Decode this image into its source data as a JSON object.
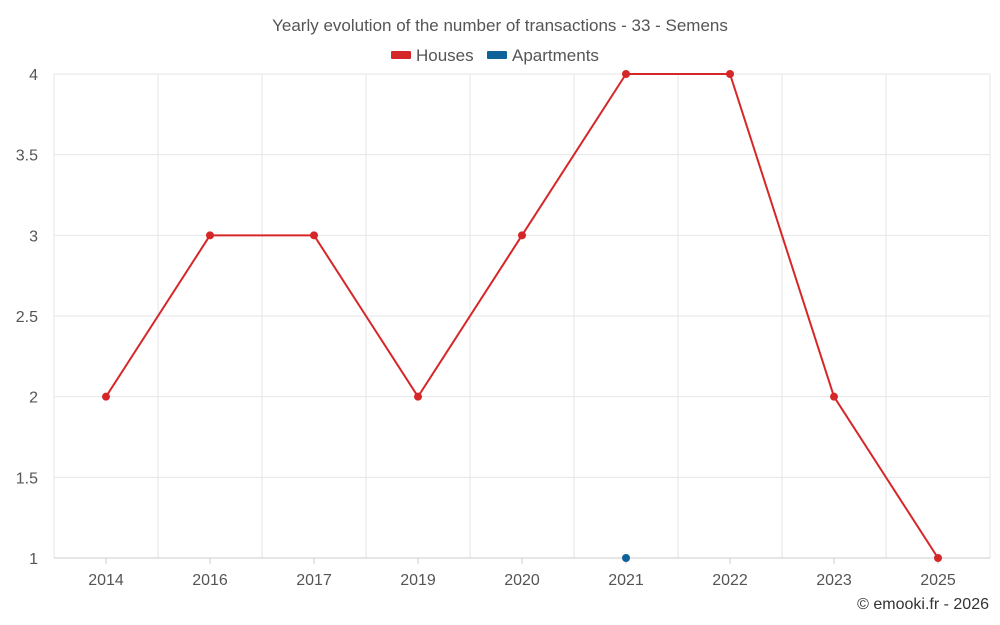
{
  "chart_data": {
    "type": "line",
    "title": "Yearly evolution of the number of transactions - 33 - Semens",
    "categories": [
      "2014",
      "2016",
      "2017",
      "2019",
      "2020",
      "2021",
      "2022",
      "2023",
      "2025"
    ],
    "series": [
      {
        "name": "Houses",
        "color": "#d62728",
        "values": [
          2,
          3,
          3,
          2,
          3,
          4,
          4,
          2,
          1
        ]
      },
      {
        "name": "Apartments",
        "color": "#0f6199",
        "values": [
          null,
          null,
          null,
          null,
          null,
          1,
          null,
          null,
          null
        ]
      }
    ],
    "ylim": [
      1,
      4
    ],
    "yticks": [
      "1",
      "1.5",
      "2",
      "2.5",
      "3",
      "3.5",
      "4"
    ],
    "xlabel": "",
    "ylabel": "",
    "legend_position": "top-center",
    "grid": true
  },
  "credit": "© emooki.fr - 2026"
}
